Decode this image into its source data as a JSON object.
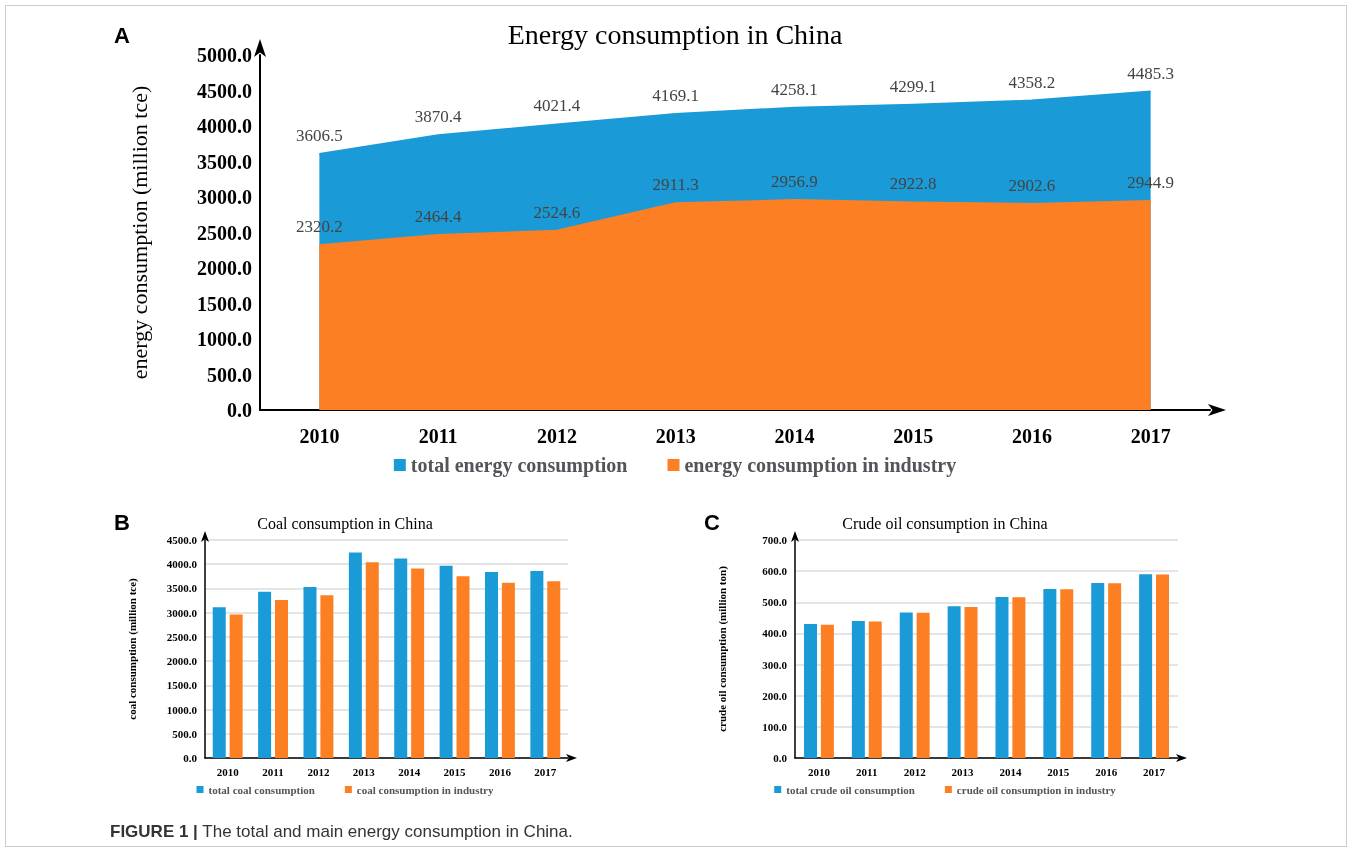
{
  "chart_data": [
    {
      "type": "area",
      "title": "Energy consumption in China",
      "ylabel": "energy consumption (million tce)",
      "annotations": [
        "A"
      ],
      "categories": [
        "2010",
        "2011",
        "2012",
        "2013",
        "2014",
        "2015",
        "2016",
        "2017"
      ],
      "series": [
        {
          "name": "total energy consumption",
          "color": "#1a9bd7",
          "values": [
            3606.5,
            3870.4,
            4021.4,
            4169.1,
            4258.1,
            4299.1,
            4358.2,
            4485.3
          ]
        },
        {
          "name": "energy consumption in industry",
          "color": "#fd7f23",
          "values": [
            2320.2,
            2464.4,
            2524.6,
            2911.3,
            2956.9,
            2922.8,
            2902.6,
            2944.9
          ]
        }
      ],
      "ylim": [
        0,
        5000
      ],
      "yticks": [
        {
          "value": 0,
          "label": "0.0"
        },
        {
          "value": 500,
          "label": "500.0"
        },
        {
          "value": 1000,
          "label": "1000.0"
        },
        {
          "value": 1500,
          "label": "1500.0"
        },
        {
          "value": 2000,
          "label": "2000.0"
        },
        {
          "value": 2500,
          "label": "2500.0"
        },
        {
          "value": 3000,
          "label": "3000.0"
        },
        {
          "value": 3500,
          "label": "3500.0"
        },
        {
          "value": 4000,
          "label": "4000.0"
        },
        {
          "value": 4500,
          "label": "4500.0"
        },
        {
          "value": 5000,
          "label": "5000.0"
        }
      ],
      "data_labels": true,
      "grid": false,
      "legend": "bottom"
    },
    {
      "type": "bar",
      "title": "Coal consumption in China",
      "ylabel": "coal consumption (million tce)",
      "annotations": [
        "B"
      ],
      "categories": [
        "2010",
        "2011",
        "2012",
        "2013",
        "2014",
        "2015",
        "2016",
        "2017"
      ],
      "series": [
        {
          "name": "total coal consumption",
          "color": "#1a9bd7",
          "values": [
            3110,
            3430,
            3530,
            4240,
            4120,
            3970,
            3840,
            3860
          ]
        },
        {
          "name": "coal consumption in industry",
          "color": "#fd7f23",
          "values": [
            2960,
            3260,
            3360,
            4040,
            3910,
            3750,
            3620,
            3650
          ]
        }
      ],
      "ylim": [
        0,
        4500
      ],
      "yticks": [
        {
          "value": 0,
          "label": "0.0"
        },
        {
          "value": 500,
          "label": "500.0"
        },
        {
          "value": 1000,
          "label": "1000.0"
        },
        {
          "value": 1500,
          "label": "1500.0"
        },
        {
          "value": 2000,
          "label": "2000.0"
        },
        {
          "value": 2500,
          "label": "2500.0"
        },
        {
          "value": 3000,
          "label": "3000.0"
        },
        {
          "value": 3500,
          "label": "3500.0"
        },
        {
          "value": 4000,
          "label": "4000.0"
        },
        {
          "value": 4500,
          "label": "4500.0"
        }
      ],
      "grid": "y",
      "legend": "bottom"
    },
    {
      "type": "bar",
      "title": "Crude oil consumption in China",
      "ylabel": "crude oil consumption (million ton)",
      "annotations": [
        "C",
        "FIGURE 1 | The total and main energy consumption in China."
      ],
      "categories": [
        "2010",
        "2011",
        "2012",
        "2013",
        "2014",
        "2015",
        "2016",
        "2017"
      ],
      "series": [
        {
          "name": "total crude oil consumption",
          "color": "#1a9bd7",
          "values": [
            430,
            440,
            467,
            487,
            517,
            543,
            562,
            590
          ]
        },
        {
          "name": "crude oil consumption in industry",
          "color": "#fd7f23",
          "values": [
            428,
            438,
            466,
            485,
            516,
            542,
            561,
            589
          ]
        }
      ],
      "ylim": [
        0,
        700
      ],
      "yticks": [
        {
          "value": 0,
          "label": "0.0"
        },
        {
          "value": 100,
          "label": "100.0"
        },
        {
          "value": 200,
          "label": "200.0"
        },
        {
          "value": 300,
          "label": "300.0"
        },
        {
          "value": 400,
          "label": "400.0"
        },
        {
          "value": 500,
          "label": "500.0"
        },
        {
          "value": 600,
          "label": "600.0"
        },
        {
          "value": 700,
          "label": "700.0"
        }
      ],
      "grid": "y",
      "legend": "bottom"
    }
  ]
}
